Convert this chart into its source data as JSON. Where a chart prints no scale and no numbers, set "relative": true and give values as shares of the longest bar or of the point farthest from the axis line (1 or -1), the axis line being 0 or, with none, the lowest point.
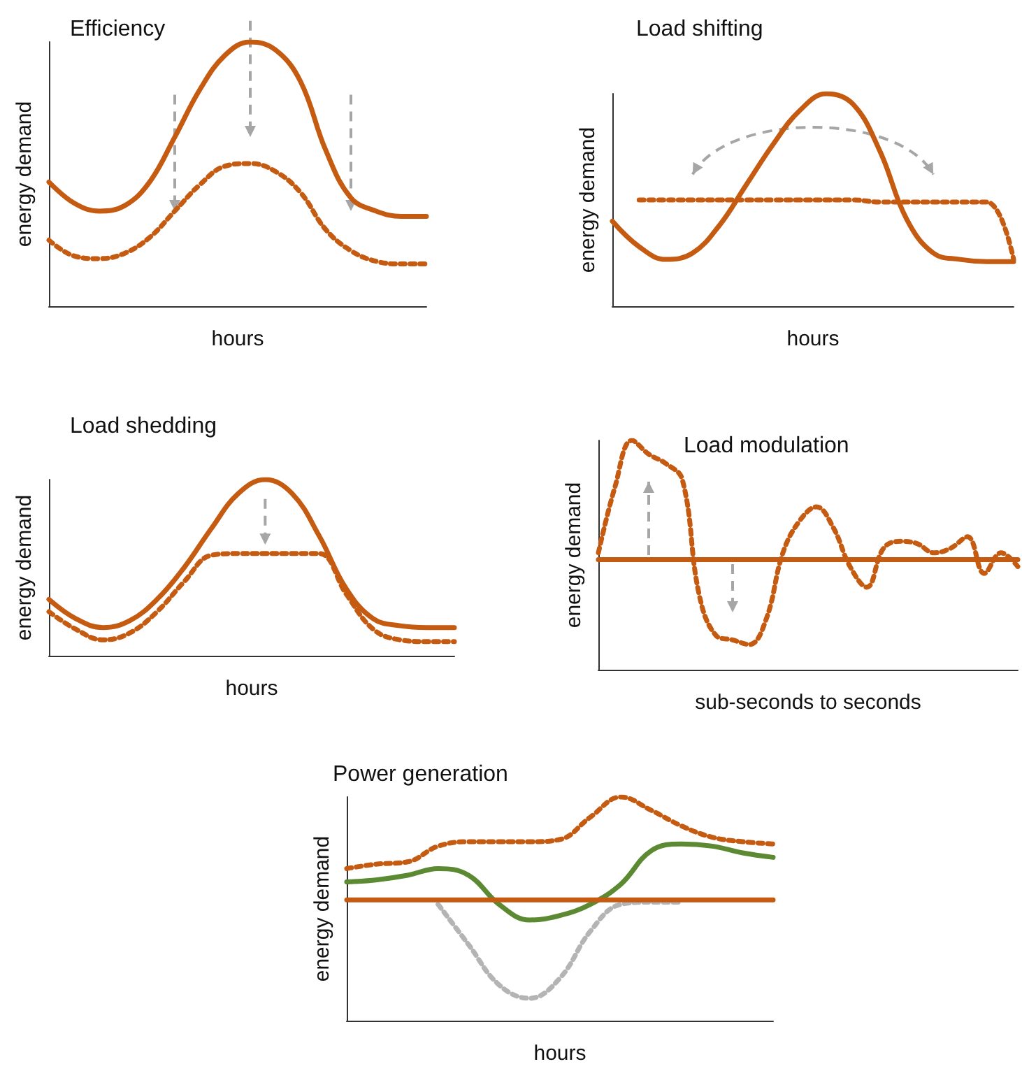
{
  "chart_data": [
    {
      "type": "line",
      "relative": true,
      "title": "Efficiency",
      "xlabel": "hours",
      "ylabel": "energy demand",
      "categories": [
        null,
        null,
        null,
        null,
        null,
        null,
        null,
        null,
        null,
        null,
        null,
        null,
        null,
        null,
        null,
        null
      ],
      "series": [
        {
          "color": "#c55a11",
          "line_style": "solid",
          "values": [
            0.47,
            0.39,
            0.36,
            0.38,
            0.47,
            0.64,
            0.82,
            0.95,
            1,
            0.97,
            0.85,
            0.59,
            0.41,
            0.36,
            0.34,
            0.34
          ]
        },
        {
          "color": "#c55a11",
          "line_style": "dotted",
          "values": [
            0.25,
            0.19,
            0.18,
            0.2,
            0.26,
            0.36,
            0.46,
            0.53,
            0.54,
            0.51,
            0.43,
            0.29,
            0.21,
            0.17,
            0.16,
            0.16
          ]
        }
      ],
      "grid": false,
      "marker": "none"
    },
    {
      "type": "line",
      "relative": true,
      "title": "Load shifting",
      "xlabel": "hours",
      "ylabel": "energy demand",
      "categories": [
        null,
        null,
        null,
        null,
        null,
        null,
        null,
        null,
        null,
        null,
        null,
        null,
        null,
        null,
        null,
        null
      ],
      "series": [
        {
          "color": "#c55a11",
          "line_style": "solid",
          "values": [
            0.4,
            0.28,
            0.22,
            0.25,
            0.38,
            0.57,
            0.76,
            0.92,
            1,
            0.95,
            0.73,
            0.41,
            0.25,
            0.22,
            0.21,
            0.21
          ]
        },
        {
          "color": "#c55a11",
          "line_style": "dotted",
          "values": [
            null,
            0.5,
            0.5,
            0.5,
            0.5,
            0.5,
            0.5,
            0.5,
            0.5,
            0.5,
            0.49,
            0.49,
            0.49,
            0.49,
            0.49,
            0.22
          ]
        }
      ],
      "grid": false,
      "marker": "none"
    },
    {
      "type": "line",
      "relative": true,
      "title": "Load shedding",
      "xlabel": "hours",
      "ylabel": "energy demand",
      "categories": [
        null,
        null,
        null,
        null,
        null,
        null,
        null,
        null,
        null,
        null,
        null,
        null,
        null,
        null,
        null,
        null
      ],
      "series": [
        {
          "color": "#c55a11",
          "line_style": "solid",
          "values": [
            0.32,
            0.21,
            0.16,
            0.2,
            0.32,
            0.5,
            0.72,
            0.92,
            1,
            0.92,
            0.68,
            0.38,
            0.21,
            0.17,
            0.16,
            0.16
          ]
        },
        {
          "color": "#c55a11",
          "line_style": "dotted",
          "values": [
            0.25,
            0.15,
            0.09,
            0.13,
            0.25,
            0.42,
            0.57,
            0.58,
            0.58,
            0.58,
            0.58,
            0.35,
            0.15,
            0.09,
            0.08,
            0.08
          ]
        }
      ],
      "grid": false,
      "marker": "none"
    },
    {
      "type": "line",
      "relative": true,
      "title": "Load modulation",
      "xlabel": "sub-seconds to seconds",
      "ylabel": "energy demand",
      "categories": [
        null,
        null,
        null,
        null,
        null,
        null,
        null,
        null,
        null,
        null,
        null,
        null,
        null,
        null,
        null,
        null,
        null,
        null,
        null,
        null,
        null,
        null,
        null,
        null,
        null,
        null
      ],
      "series": [
        {
          "color": "#c55a11",
          "line_style": "solid",
          "values": [
            0.48,
            0.48,
            0.48,
            0.48,
            0.48,
            0.48,
            0.48,
            0.48,
            0.48,
            0.48,
            0.48,
            0.48,
            0.48,
            0.48,
            0.48,
            0.48,
            0.48,
            0.48,
            0.48,
            0.48,
            0.48,
            0.48,
            0.48,
            0.48,
            0.48,
            0.48
          ]
        },
        {
          "color": "#c55a11",
          "line_style": "dotted",
          "values": [
            0.51,
            0.8,
            1,
            0.94,
            0.9,
            0.83,
            0.33,
            0.15,
            0.13,
            0.11,
            0.22,
            0.51,
            0.65,
            0.71,
            0.62,
            0.45,
            0.36,
            0.53,
            0.56,
            0.55,
            0.51,
            0.53,
            0.58,
            0.42,
            0.51,
            0.45
          ]
        }
      ],
      "grid": false,
      "marker": "none"
    },
    {
      "type": "line",
      "relative": true,
      "title": "Power generation",
      "xlabel": "hours",
      "ylabel": "energy demand",
      "categories": [
        null,
        null,
        null,
        null,
        null,
        null,
        null,
        null,
        null,
        null,
        null,
        null,
        null,
        null,
        null
      ],
      "series": [
        {
          "color": "#5b8a32",
          "line_style": "solid",
          "values": [
            0.62,
            0.63,
            0.65,
            0.68,
            0.65,
            0.52,
            0.45,
            0.47,
            0.52,
            0.61,
            0.76,
            0.79,
            0.78,
            0.75,
            0.73
          ]
        },
        {
          "color": "#c55a11",
          "line_style": "dotted",
          "values": [
            0.68,
            0.7,
            0.71,
            0.78,
            0.8,
            0.8,
            0.8,
            0.81,
            0.91,
            1,
            0.94,
            0.87,
            0.82,
            0.8,
            0.79
          ]
        },
        {
          "color": "#b4b4b4",
          "line_style": "dotted",
          "values": [
            null,
            null,
            null,
            0.52,
            0.34,
            0.16,
            0.1,
            0.19,
            0.4,
            0.52,
            0.53,
            0.53,
            null,
            null,
            null
          ]
        },
        {
          "color": "#c55a11",
          "line_style": "solid",
          "values": [
            0.54,
            0.54,
            0.54,
            0.54,
            0.54,
            0.54,
            0.54,
            0.54,
            0.54,
            0.54,
            0.54,
            0.54,
            0.54,
            0.54,
            0.54
          ]
        }
      ],
      "grid": false,
      "marker": "none"
    }
  ]
}
